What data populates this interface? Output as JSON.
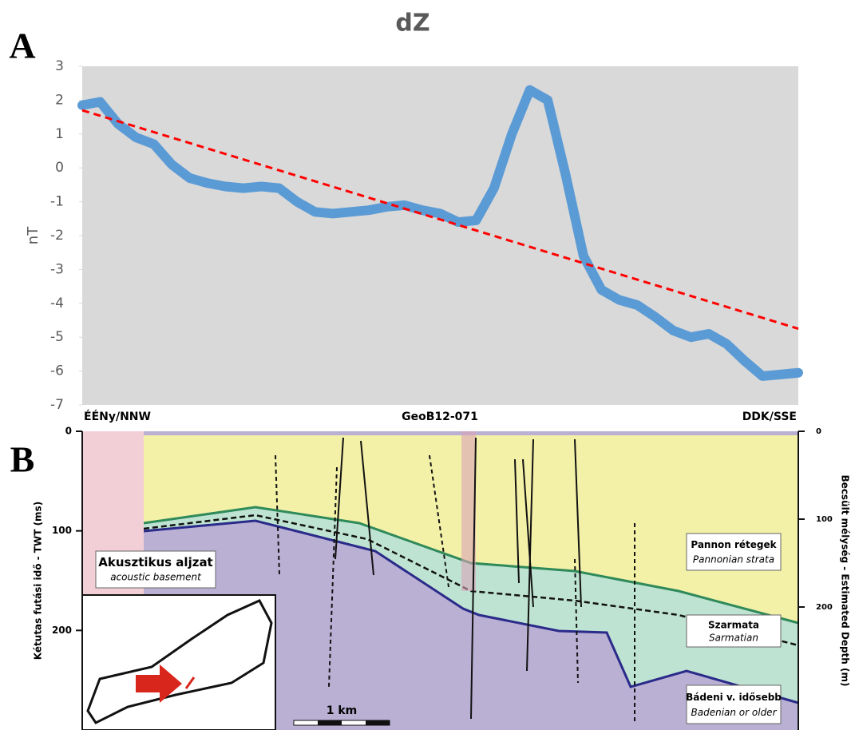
{
  "chart_data": {
    "type": "line",
    "title": "dZ",
    "y_label": "nT",
    "panel_label": "A",
    "ylim": [
      -7,
      3
    ],
    "yticks": [
      -7,
      -6,
      -5,
      -4,
      -3,
      -2,
      -1,
      0,
      1,
      2,
      3
    ],
    "grid": false,
    "series": [
      {
        "color": "#5b9bd5",
        "values": [
          1.85,
          1.95,
          1.3,
          0.9,
          0.7,
          0.1,
          -0.3,
          -0.45,
          -0.55,
          -0.6,
          -0.55,
          -0.6,
          -1.0,
          -1.3,
          -1.35,
          -1.3,
          -1.25,
          -1.15,
          -1.1,
          -1.25,
          -1.35,
          -1.6,
          -1.55,
          -0.6,
          1.0,
          2.3,
          2.0,
          -0.2,
          -2.6,
          -3.6,
          -3.9,
          -4.05,
          -4.4,
          -4.8,
          -5.0,
          -4.9,
          -5.2,
          -5.7,
          -6.15,
          -6.1,
          -6.05
        ]
      }
    ],
    "trend_line": {
      "color": "#ff0000",
      "values": [
        1.7,
        -4.75
      ]
    }
  },
  "section": {
    "panel_label": "B",
    "left_label": "ÉÉNy/NNW",
    "center_label": "GeoB12-071",
    "right_label": "DDK/SSE",
    "twt_axis": {
      "label": "Kétutas futási idő - TWT (ms)",
      "lim": [
        0,
        300
      ],
      "ticks": [
        0,
        100,
        200
      ]
    },
    "depth_axis": {
      "label": "Becsült mélység - Estimated Depth (m)",
      "lim": [
        0,
        340
      ],
      "ticks": [
        0,
        100,
        200
      ]
    },
    "units": [
      {
        "name": "Pannon rétegek",
        "subname": "Pannonian strata"
      },
      {
        "name": "Szarmata",
        "subname": "Sarmatian"
      },
      {
        "name": "Bádeni v. idősebb",
        "subname": "Badenian or older"
      },
      {
        "name": "Akusztikus aljzat",
        "subname": "acoustic basement"
      }
    ],
    "scale_bar": "1 km"
  }
}
